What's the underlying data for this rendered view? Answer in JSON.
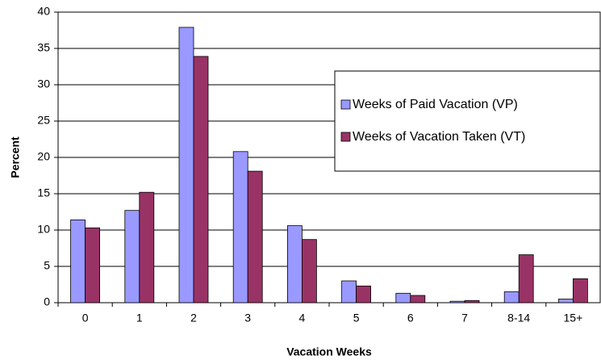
{
  "chart_data": {
    "type": "bar",
    "xlabel": "Vacation Weeks",
    "ylabel": "Percent",
    "categories": [
      "0",
      "1",
      "2",
      "3",
      "4",
      "5",
      "6",
      "7",
      "8-14",
      "15+"
    ],
    "series": [
      {
        "name": "Weeks of Paid Vacation (VP)",
        "color": "#9999ff",
        "values": [
          11.4,
          12.7,
          37.9,
          20.8,
          10.6,
          3.0,
          1.3,
          0.2,
          1.5,
          0.5
        ]
      },
      {
        "name": "Weeks of Vacation Taken (VT)",
        "color": "#993366",
        "values": [
          10.3,
          15.2,
          33.9,
          18.1,
          8.7,
          2.3,
          1.0,
          0.3,
          6.6,
          3.3
        ]
      }
    ],
    "ylim": [
      0,
      40
    ],
    "yticks": [
      0,
      5,
      10,
      15,
      20,
      25,
      30,
      35,
      40
    ],
    "grid": true,
    "legend": "right"
  }
}
